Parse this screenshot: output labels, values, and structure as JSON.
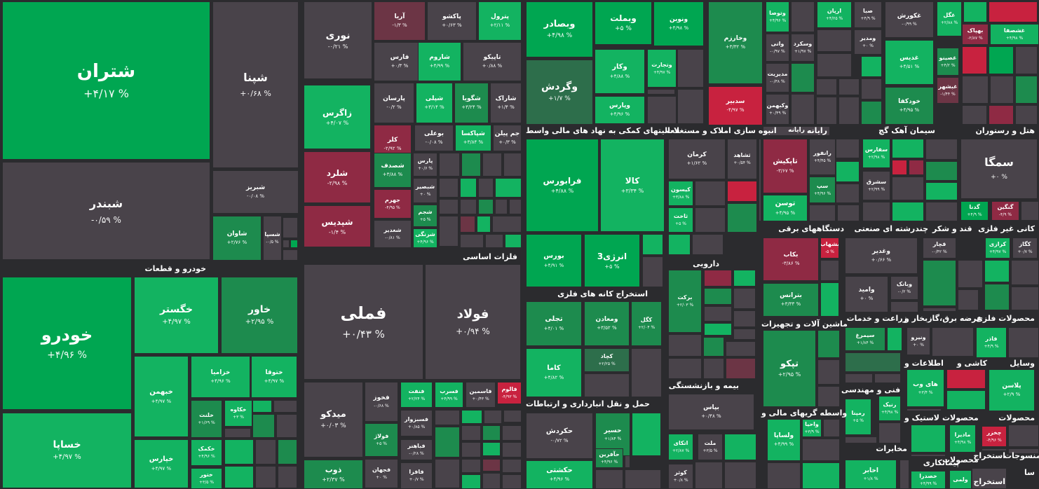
{
  "colors": {
    "g1": "#00a651",
    "g2": "#13b361",
    "g3": "#1d8b4e",
    "g4": "#2d6e4b",
    "n": "#49434a",
    "r1": "#c8223f",
    "r2": "#8f2a44",
    "r3": "#6c3545"
  },
  "sections": [
    {
      "label": "خودرو و قطعات"
    },
    {
      "label": "فلزات اساسی"
    },
    {
      "label": "فعالیتهای کمکی به نهاد های مالی واسط"
    },
    {
      "label": "انبوه سازی املاک و مستغلات"
    },
    {
      "label": "رایانه"
    },
    {
      "label": "سیمان آهک گچ"
    },
    {
      "label": "هتل و رستوران"
    },
    {
      "label": "استخراج کانه های فلزی"
    },
    {
      "label": "دارویی"
    },
    {
      "label": "دستگاههای برقی"
    },
    {
      "label": "چندرشته ای صنعتی"
    },
    {
      "label": "قند و شکر"
    },
    {
      "label": "کانی غیر فلزی"
    },
    {
      "label": "حمل و نقل انبارداری و ارتباطات"
    },
    {
      "label": "بیمه و بازنشستگی"
    },
    {
      "label": "ماشین آلات و تجهیزات"
    },
    {
      "label": "زراعت و خدمات"
    },
    {
      "label": "عرضه برق،گازبخار و"
    },
    {
      "label": "محصولات فلزی"
    },
    {
      "label": "اطلاعات و"
    },
    {
      "label": "کاشی و"
    },
    {
      "label": "وسایل"
    },
    {
      "label": "فنی و مهندسی"
    },
    {
      "label": "واسطه گریهای مالی و"
    },
    {
      "label": "لاستیک و"
    },
    {
      "label": "محصولات"
    },
    {
      "label": "محصولات"
    },
    {
      "label": "مخابرات"
    },
    {
      "label": "پیمانکاری"
    },
    {
      "label": "محصولات"
    },
    {
      "label": "استخراج"
    },
    {
      "label": "منسوجات"
    },
    {
      "label": "سا"
    },
    {
      "label": "استخراج"
    }
  ],
  "tiles": [
    {
      "name": "شتران",
      "value": "+۴/۱۷ %"
    },
    {
      "name": "شپنا",
      "value": "+۰/۶۸ %"
    },
    {
      "name": "شبندر",
      "value": "-۰/۵۹ %"
    },
    {
      "name": "شبریز",
      "value": "-۰/۰۸ %"
    },
    {
      "name": "شاوان",
      "value": "+۲/۷۶ %"
    },
    {
      "name": "شسپا",
      "value": "-۰/۵ %"
    },
    {
      "name": "خودرو",
      "value": "+۴/۹۶ %"
    },
    {
      "name": "خگستر",
      "value": "+۴/۹۷ %"
    },
    {
      "name": "خاور",
      "value": "+۲/۹۵ %"
    },
    {
      "name": "خساپا",
      "value": "+۴/۹۷ %"
    },
    {
      "name": "خبهمن",
      "value": "+۴/۹۷ %"
    },
    {
      "name": "خزامیا",
      "value": "+۴/۹۶ %"
    },
    {
      "name": "ختوقا",
      "value": "+۴/۹۷ %"
    },
    {
      "name": "خلنت",
      "value": "+۱/۶۹ %"
    },
    {
      "name": "خکاوه",
      "value": "+۳ %"
    },
    {
      "name": "خپارس",
      "value": "+۴/۹۷ %"
    },
    {
      "name": "خکمک",
      "value": "+۴/۹۶ %"
    },
    {
      "name": "ختور",
      "value": "+۳/۵ %"
    },
    {
      "name": "نوری",
      "value": "-۰/۲۱ %"
    },
    {
      "name": "آریا",
      "value": "-۱/۳ %"
    },
    {
      "name": "پاکشو",
      "value": "+۰/۶۳ %"
    },
    {
      "name": "پترول",
      "value": "+۲/۱۱ %"
    },
    {
      "name": "فارس",
      "value": "+۰/۳ %"
    },
    {
      "name": "شاروم",
      "value": "+۴/۹۹ %"
    },
    {
      "name": "تاپیکو",
      "value": "+۰/۸۸ %"
    },
    {
      "name": "زاگرس",
      "value": "+۴/۰۷ %"
    },
    {
      "name": "پارسان",
      "value": "-۰/۲ %"
    },
    {
      "name": "شپلی",
      "value": "+۳/۱۴ %"
    },
    {
      "name": "شگویا",
      "value": "+۳/۲۴ %"
    },
    {
      "name": "شاراک",
      "value": "+۱/۴ %"
    },
    {
      "name": "کلر",
      "value": "-۲/۹۲ %"
    },
    {
      "name": "بوعلی",
      "value": "-۰/۰۸ %"
    },
    {
      "name": "شپاکسا",
      "value": "+۳/۸۴ %"
    },
    {
      "name": "جم پیلن",
      "value": "+۰/۳ %"
    },
    {
      "name": "شلرد",
      "value": "-۲/۹۸ %"
    },
    {
      "name": "شصدف",
      "value": "+۳/۸۸ %"
    },
    {
      "name": "پارس",
      "value": "+۰/۶ %"
    },
    {
      "name": "جهرم",
      "value": "-۴/۹۵ %"
    },
    {
      "name": "شبصیر",
      "value": "+۰ %"
    },
    {
      "name": "شجم",
      "value": "+۵ %"
    },
    {
      "name": "شپدیس",
      "value": "-۱/۴ %"
    },
    {
      "name": "شغدیر",
      "value": "-۰/۸۱ %"
    },
    {
      "name": "شرنگی",
      "value": "+۴/۹۶ %"
    },
    {
      "name": "فملی",
      "value": "+۰/۴۳ %"
    },
    {
      "name": "فولاد",
      "value": "+۰/۹۴ %"
    },
    {
      "name": "میدکو",
      "value": "+۰/۰۳ %"
    },
    {
      "name": "فخوز",
      "value": "-۰/۶۸ %"
    },
    {
      "name": "فنفت",
      "value": "+۲/۲۴ %"
    },
    {
      "name": "فسرب",
      "value": "+۴/۹۹ %"
    },
    {
      "name": "فاسمین",
      "value": "+۰/۴۳ %"
    },
    {
      "name": "فالوم",
      "value": "-۴/۹۳ %"
    },
    {
      "name": "فسبزوار",
      "value": "+۰/۸۵ %"
    },
    {
      "name": "فولاژ",
      "value": "+۵ %"
    },
    {
      "name": "ذوب",
      "value": "+۲/۳۷ %"
    },
    {
      "name": "فجهان",
      "value": "+۰ %"
    },
    {
      "name": "فباهنر",
      "value": "-۰/۲۸ %"
    },
    {
      "name": "فافزا",
      "value": "+۰/۷ %"
    },
    {
      "name": "وبصادر",
      "value": "+۴/۹۸ %"
    },
    {
      "name": "وبملت",
      "value": "+۵ %"
    },
    {
      "name": "ونوین",
      "value": "+۴/۹۸ %"
    },
    {
      "name": "وخارزم",
      "value": "+۳/۳۲ %"
    },
    {
      "name": "وگردش",
      "value": "+۱/۷ %"
    },
    {
      "name": "وکار",
      "value": "+۴/۸۸ %"
    },
    {
      "name": "وتجارت",
      "value": "+۴/۹۷ %"
    },
    {
      "name": "وپارس",
      "value": "+۴/۹۶ %"
    },
    {
      "name": "سدبیر",
      "value": "-۴/۹۷ %"
    },
    {
      "name": "وتوصا",
      "value": "+۴/۹۶ %"
    },
    {
      "name": "واتی",
      "value": "-۰/۹۷ %"
    },
    {
      "name": "وسکرد",
      "value": "+۱/۹۷ %"
    },
    {
      "name": "مدیریت",
      "value": "-۰/۳۸ %"
    },
    {
      "name": "وکبهمن",
      "value": "+۰/۴۹ %"
    },
    {
      "name": "ارپان",
      "value": "+۴/۲۵ %"
    },
    {
      "name": "صبا",
      "value": "+۴/۹ %"
    },
    {
      "name": "ومدیر",
      "value": "+۰ %"
    },
    {
      "name": "فرابورس",
      "value": "+۴/۸۸ %"
    },
    {
      "name": "کالا",
      "value": "+۳/۳۴ %"
    },
    {
      "name": "بورس",
      "value": "+۴/۹۱ %"
    },
    {
      "name": "انرژی3",
      "value": "+۵ %"
    },
    {
      "name": "کرمان",
      "value": "+۱/۶۲ %"
    },
    {
      "name": "ثشاهد",
      "value": "+۰/۵۴ %"
    },
    {
      "name": "کیسون",
      "value": "+۳/۸۸ %"
    },
    {
      "name": "ثاخت",
      "value": "+۵ %"
    },
    {
      "name": "رایانه",
      "value": ""
    },
    {
      "name": "تاپکیش",
      "value": "-۳/۶۷ %"
    },
    {
      "name": "رانفور",
      "value": "+۴/۴۵ %"
    },
    {
      "name": "سپ",
      "value": "+۴/۹۶ %"
    },
    {
      "name": "توسن",
      "value": "+۴/۹۵ %"
    },
    {
      "name": "غکورش",
      "value": "-۰/۹۹ %"
    },
    {
      "name": "غدیس",
      "value": "+۴/۵۱ %"
    },
    {
      "name": "خودکفا",
      "value": "+۴/۹۵ %"
    },
    {
      "name": "غگل",
      "value": "+۲/۸۸ %"
    },
    {
      "name": "بهپاک",
      "value": "-۲/۸۷ %"
    },
    {
      "name": "غشصفا",
      "value": "+۴/۹۸ %"
    },
    {
      "name": "غصینو",
      "value": "+۴/۲ %"
    },
    {
      "name": "غبشهر",
      "value": "-۱/۴۴ %"
    },
    {
      "name": "سفارس",
      "value": "+۲/۹۸ %"
    },
    {
      "name": "سشرق",
      "value": "+۲/۹۹ %"
    },
    {
      "name": "سمگا",
      "value": "+۰ %"
    },
    {
      "name": "گدنا",
      "value": "+۴/۹ %"
    },
    {
      "name": "گنگین",
      "value": "-۴/۹ %"
    },
    {
      "name": "تجلی",
      "value": "+۴/۰۱ %"
    },
    {
      "name": "ومعادن",
      "value": "+۳/۵۲ %"
    },
    {
      "name": "کگل",
      "value": "+۲/۰۴ %"
    },
    {
      "name": "کچاد",
      "value": "+۲/۲۵ %"
    },
    {
      "name": "کاما",
      "value": "+۴/۸۲ %"
    },
    {
      "name": "برکت",
      "value": "+۲/۰۳ %"
    },
    {
      "name": "بکاب",
      "value": "-۳/۸۶ %"
    },
    {
      "name": "بشهاب",
      "value": "-۵ %"
    },
    {
      "name": "بترانس",
      "value": "+۳/۳۳ %"
    },
    {
      "name": "وغدیر",
      "value": "+۰/۶۶ %"
    },
    {
      "name": "وامید",
      "value": "+۰ %"
    },
    {
      "name": "وبانک",
      "value": "-۰/۲ %"
    },
    {
      "name": "قچار",
      "value": "-۰/۴۲ %"
    },
    {
      "name": "کرازی",
      "value": "+۴/۹۷ %"
    },
    {
      "name": "کگاز",
      "value": "+۰/۷ %"
    },
    {
      "name": "حکردش",
      "value": "-۰/۷۲ %"
    },
    {
      "name": "حسیر",
      "value": "+۱/۸۴ %"
    },
    {
      "name": "حآفرین",
      "value": "+۴/۹۶ %"
    },
    {
      "name": "حکشتی",
      "value": "+۴/۹۶ %"
    },
    {
      "name": "بپاس",
      "value": "+۰/۴۸ %"
    },
    {
      "name": "اتکای",
      "value": "+۲/۸۷ %"
    },
    {
      "name": "ملت",
      "value": "+۳/۵ %"
    },
    {
      "name": "کوثر",
      "value": "+۰/۸ %"
    },
    {
      "name": "تپکو",
      "value": "+۲/۹۵ %"
    },
    {
      "name": "سیمرغ",
      "value": "+۱/۸۴ %"
    },
    {
      "name": "ونیرو",
      "value": "+۰ %"
    },
    {
      "name": "فاذر",
      "value": "+۴/۹ %"
    },
    {
      "name": "های وب",
      "value": "+۳/۴ %"
    },
    {
      "name": "پلاسن",
      "value": "+۲/۹ %"
    },
    {
      "name": "رنیک",
      "value": "+۴/۹۸ %"
    },
    {
      "name": "رمپنا",
      "value": "+۵ %"
    },
    {
      "name": "ولساپا",
      "value": "+۴/۹۹ %"
    },
    {
      "name": "واحیا",
      "value": "+۳/۹ %"
    },
    {
      "name": "مادیرا",
      "value": "+۴/۹۸ %"
    },
    {
      "name": "چخزر",
      "value": "-۴/۹۶ %"
    },
    {
      "name": "اخابر",
      "value": "+۱/۸ %"
    },
    {
      "name": "خصدرا",
      "value": "+۴/۹۹ %"
    },
    {
      "name": "ولمی",
      "value": ""
    }
  ]
}
